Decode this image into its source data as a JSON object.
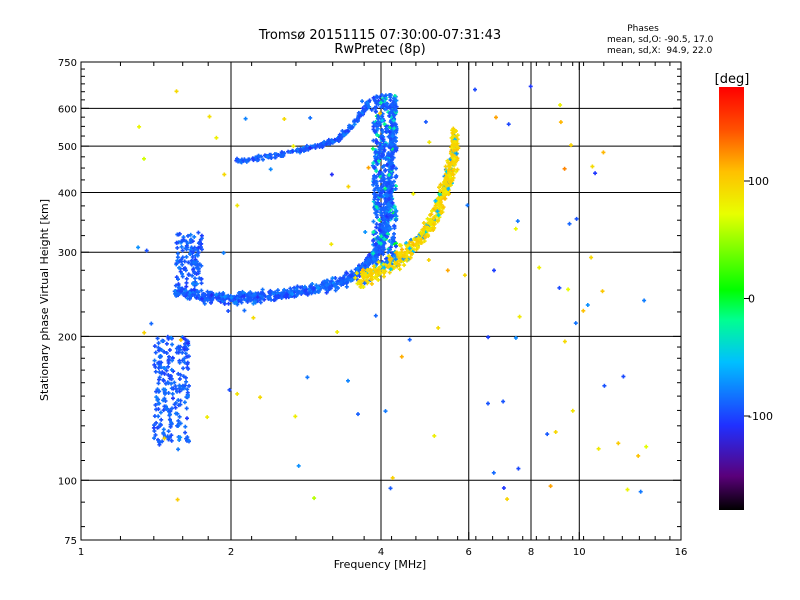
{
  "chart_data": {
    "type": "scatter",
    "title": "Tromsø 20151115 07:30:00-07:31:43",
    "subtitle": "RwPretec (8p)",
    "xlabel": "Frequency [MHz]",
    "ylabel": "Stationary phase Virtual Height [km]",
    "x_scale": "log",
    "y_scale": "log",
    "xlim": [
      1,
      16
    ],
    "ylim": [
      75,
      750
    ],
    "grid": true,
    "x_ticks": [
      1,
      2,
      4,
      6,
      8,
      10,
      16
    ],
    "x_tick_labels": [
      "1",
      "2",
      "4",
      "6",
      "8",
      "10",
      "16"
    ],
    "x_grid_lines": [
      2,
      4,
      6,
      8,
      10
    ],
    "y_ticks": [
      75,
      100,
      200,
      300,
      400,
      500,
      600,
      750
    ],
    "y_tick_labels": [
      "75",
      "100",
      "200",
      "300",
      "400",
      "500",
      "600",
      "750"
    ],
    "y_grid_lines": [
      100,
      200,
      300,
      400,
      500,
      600
    ],
    "phase_stats": {
      "heading": "Phases",
      "line1": "mean, sd,O: -90.5, 17.0",
      "line2": "mean, sd,X:  94.9, 22.0"
    },
    "colorbar": {
      "label": "[deg]",
      "range": [
        -180,
        180
      ],
      "ticks": [
        100,
        0,
        -100
      ],
      "tick_labels": [
        "100",
        "0",
        "-100"
      ]
    },
    "series": [
      {
        "mode": "O",
        "phase_mean": -90.5,
        "trace": [
          [
            1.55,
            250
          ],
          [
            1.7,
            245
          ],
          [
            1.9,
            240
          ],
          [
            2.2,
            241
          ],
          [
            2.6,
            246
          ],
          [
            3.0,
            252
          ],
          [
            3.4,
            262
          ],
          [
            3.7,
            278
          ],
          [
            3.95,
            305
          ],
          [
            4.1,
            340
          ],
          [
            4.15,
            400
          ],
          [
            4.2,
            500
          ],
          [
            4.25,
            620
          ]
        ],
        "upper_branch": [
          [
            2.05,
            465
          ],
          [
            2.5,
            480
          ],
          [
            3.0,
            500
          ],
          [
            3.3,
            520
          ],
          [
            3.55,
            560
          ],
          [
            3.8,
            620
          ]
        ],
        "e_layer_cluster": {
          "x_range": [
            1.4,
            1.65
          ],
          "y_range": [
            120,
            200
          ]
        },
        "low_region_cluster": {
          "x_range": [
            1.55,
            1.75
          ],
          "y_range": [
            255,
            330
          ]
        },
        "vertical_column": {
          "x_range": [
            3.85,
            4.3
          ],
          "y_range": [
            280,
            640
          ]
        }
      },
      {
        "mode": "X",
        "phase_mean": 94.9,
        "trace": [
          [
            3.6,
            262
          ],
          [
            4.0,
            275
          ],
          [
            4.4,
            292
          ],
          [
            4.8,
            320
          ],
          [
            5.1,
            350
          ],
          [
            5.35,
            400
          ],
          [
            5.5,
            440
          ],
          [
            5.6,
            480
          ],
          [
            5.65,
            530
          ]
        ]
      }
    ]
  }
}
